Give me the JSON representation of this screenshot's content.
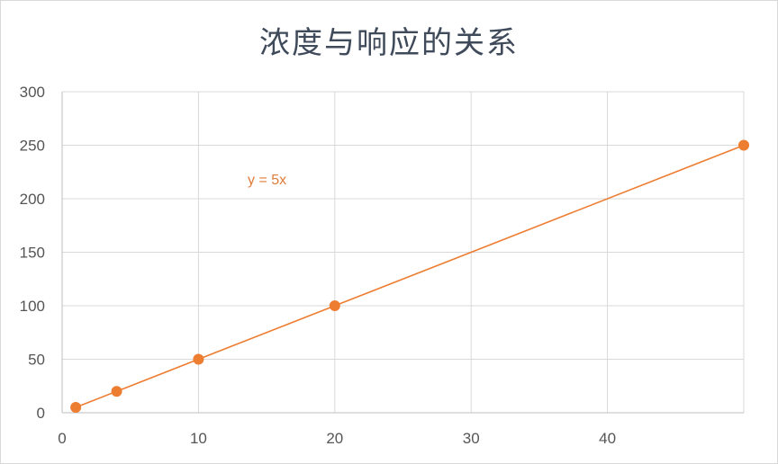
{
  "chart_data": {
    "type": "scatter",
    "title": "浓度与响应的关系",
    "xlabel": "",
    "ylabel": "",
    "xlim": [
      0,
      50
    ],
    "ylim": [
      0,
      300
    ],
    "x_ticks": [
      "0",
      "10",
      "20",
      "30",
      "40"
    ],
    "y_ticks": [
      "0",
      "50",
      "100",
      "150",
      "200",
      "250",
      "300"
    ],
    "grid": true,
    "series": [
      {
        "x": [
          1,
          4,
          10,
          20,
          50
        ],
        "y": [
          5,
          20,
          50,
          100,
          250
        ],
        "color": "#ed7d31",
        "trendline": {
          "type": "linear",
          "equation": "y = 5x",
          "x_range": [
            1,
            50
          ]
        }
      }
    ]
  }
}
